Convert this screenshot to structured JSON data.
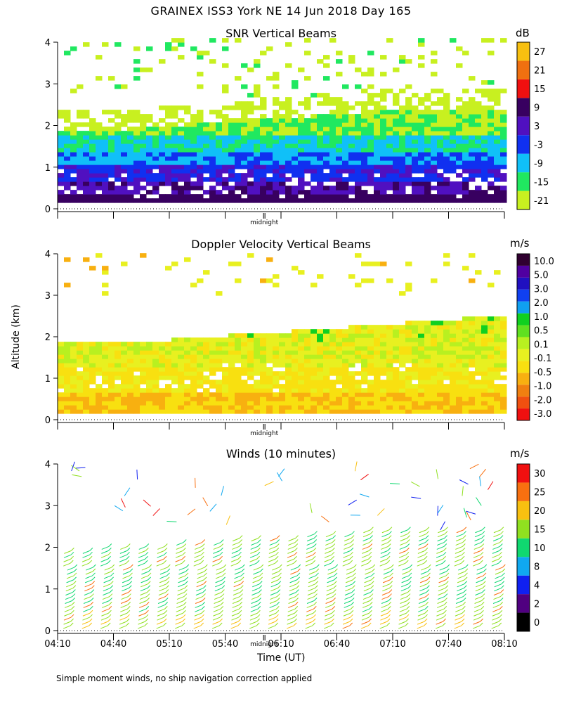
{
  "title": "GRAINEX ISS3 York NE  14 Jun 2018 Day 165",
  "y_axis_label": "Altitude (km)",
  "x_axis_label": "Time (UT)",
  "midnight_label": "midnight",
  "footnote": "Simple moment winds, no ship navigation correction applied",
  "colors": {
    "snr": [
      "#c8f020",
      "#20e860",
      "#10c0f8",
      "#1030f0",
      "#5010c0",
      "#380060",
      "#f01010",
      "#f07010",
      "#f8c010"
    ],
    "vel": [
      "#f01010",
      "#f05010",
      "#f08010",
      "#f8b010",
      "#f8e010",
      "#e8f020",
      "#b8f020",
      "#60e020",
      "#10d020",
      "#10a0f0",
      "#1040f0",
      "#2010c0",
      "#5000a0",
      "#300030"
    ],
    "wind": [
      "#000000",
      "#500080",
      "#1020f0",
      "#10a8f0",
      "#10d870",
      "#90e020",
      "#f8c010",
      "#f87010",
      "#f01010"
    ]
  },
  "chart_data": [
    {
      "type": "heatmap",
      "title": "SNR Vertical Beams",
      "xlabel": "Time (UT)",
      "ylabel": "Altitude (km)",
      "xlim": [
        "04:10",
        "08:10"
      ],
      "ylim": [
        0,
        4
      ],
      "yticks": [
        "0",
        "1",
        "2",
        "3",
        "4"
      ],
      "colorbar_unit": "dB",
      "colorbar_labels": [
        "-21",
        "-15",
        "-9",
        "-3",
        "3",
        "9",
        "15",
        "21",
        "27"
      ],
      "annotation": "midnight",
      "description_layers": [
        {
          "altitude_km": [
            0.15,
            0.5
          ],
          "value_db": 6
        },
        {
          "altitude_km": [
            0.5,
            1.0
          ],
          "value_db": 0
        },
        {
          "altitude_km": [
            1.0,
            1.5
          ],
          "value_db": -6
        },
        {
          "altitude_km": [
            1.5,
            2.0
          ],
          "value_db": -12
        },
        {
          "altitude_km": [
            2.0,
            4.0
          ],
          "value_db": -21
        }
      ]
    },
    {
      "type": "heatmap",
      "title": "Doppler Velocity Vertical Beams",
      "xlabel": "Time (UT)",
      "ylabel": "Altitude (km)",
      "xlim": [
        "04:10",
        "08:10"
      ],
      "ylim": [
        0,
        4
      ],
      "yticks": [
        "0",
        "1",
        "2",
        "3",
        "4"
      ],
      "colorbar_unit": "m/s",
      "colorbar_labels": [
        "-3.0",
        "-2.0",
        "-1.0",
        "-0.5",
        "-0.1",
        "0.1",
        "0.5",
        "1.0",
        "2.0",
        "3.0",
        "5.0",
        "10.0"
      ],
      "annotation": "midnight"
    },
    {
      "type": "scatter",
      "title": "Winds (10 minutes)",
      "xlabel": "Time (UT)",
      "ylabel": "Altitude (km)",
      "x": [
        "04:10",
        "04:40",
        "05:10",
        "05:40",
        "06:10",
        "06:40",
        "07:10",
        "07:40",
        "08:10"
      ],
      "xticks": [
        "04:10",
        "04:40",
        "05:10",
        "05:40",
        "06:10",
        "06:40",
        "07:10",
        "07:40",
        "08:10"
      ],
      "ylim": [
        0,
        4
      ],
      "yticks": [
        "0",
        "1",
        "2",
        "3",
        "4"
      ],
      "colorbar_unit": "m/s",
      "colorbar_labels": [
        "0",
        "2",
        "4",
        "8",
        "10",
        "15",
        "20",
        "25",
        "30"
      ],
      "annotation": "midnight"
    }
  ]
}
